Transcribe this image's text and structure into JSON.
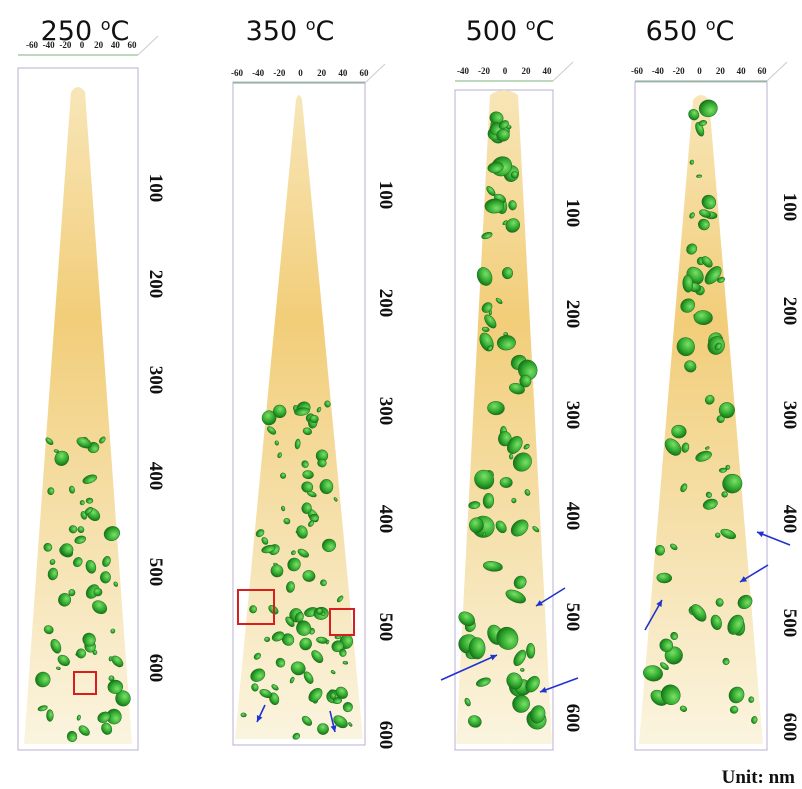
{
  "panels": [
    {
      "temperature": "250",
      "degree": "o",
      "unit": "C",
      "top_ticks": [
        -60,
        -40,
        -20,
        0,
        20,
        40,
        60
      ],
      "depth_ticks": [
        100,
        200,
        300,
        400,
        500,
        600
      ]
    },
    {
      "temperature": "350",
      "degree": "o",
      "unit": "C",
      "top_ticks": [
        -60,
        -40,
        -20,
        0,
        20,
        40,
        60
      ],
      "depth_ticks": [
        100,
        200,
        300,
        400,
        500,
        600
      ]
    },
    {
      "temperature": "500",
      "degree": "o",
      "unit": "C",
      "top_ticks": [
        -40,
        -20,
        0,
        20,
        40
      ],
      "depth_ticks": [
        100,
        200,
        300,
        400,
        500,
        600
      ]
    },
    {
      "temperature": "650",
      "degree": "o",
      "unit": "C",
      "top_ticks": [
        -60,
        -40,
        -20,
        0,
        20,
        40,
        60
      ],
      "depth_ticks": [
        100,
        200,
        300,
        400,
        500,
        600
      ]
    }
  ],
  "unit_note": "Unit: nm"
}
